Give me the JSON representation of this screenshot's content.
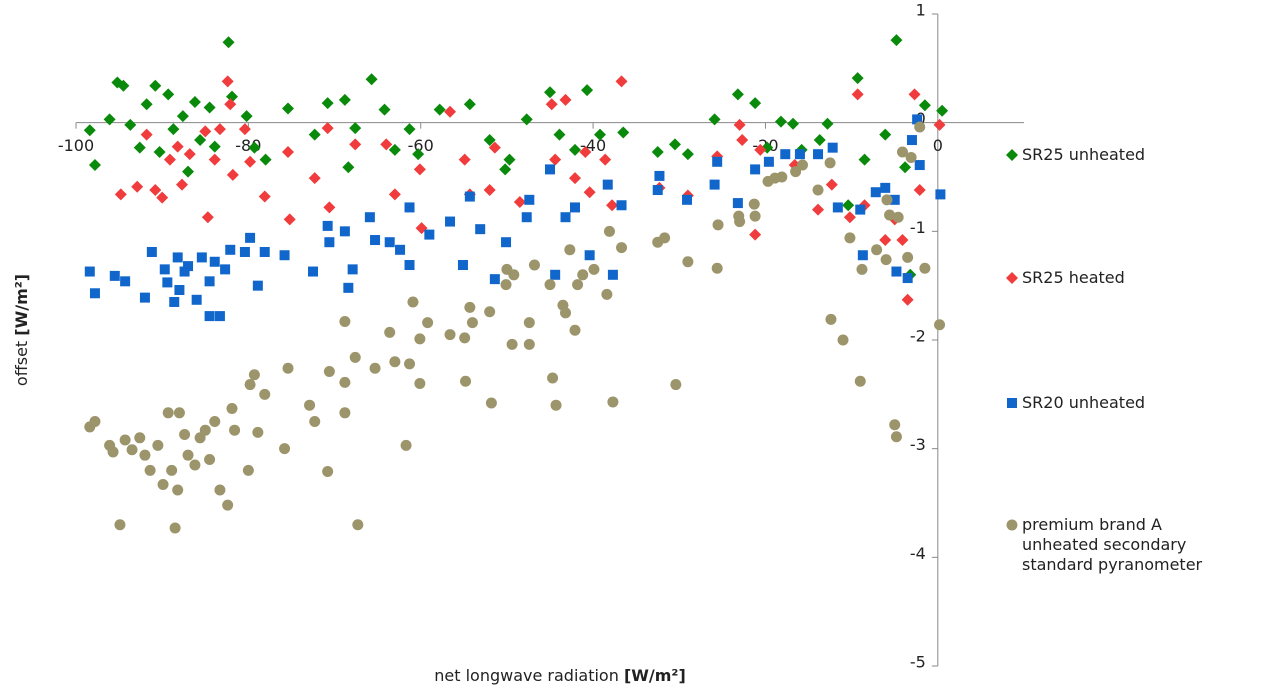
{
  "chart_data": {
    "type": "scatter",
    "xlabel": {
      "text": "net longwave radiation",
      "unit": "[W/m²]"
    },
    "ylabel": {
      "text": "offset",
      "unit": "[W/m²]"
    },
    "xlim": [
      -100,
      10
    ],
    "xticks": [
      -100,
      -80,
      -60,
      -40,
      -20,
      0
    ],
    "ylim": [
      -5,
      1
    ],
    "yticks": [
      -5,
      -4,
      -3,
      -2,
      -1,
      0,
      1
    ],
    "grid": false,
    "legend": "right",
    "series": [
      {
        "name": "SR25 unheated",
        "color": "#0a8a0a",
        "marker": "diamond",
        "x": [
          -98.4,
          -97.8,
          -96.1,
          -95.2,
          -94.5,
          -93.7,
          -92.6,
          -91.8,
          -90.8,
          -90.3,
          -89.3,
          -88.7,
          -87.6,
          -87.0,
          -86.2,
          -85.6,
          -84.5,
          -83.9,
          -82.3,
          -81.9,
          -80.2,
          -79.3,
          -78.0,
          -75.4,
          -72.3,
          -70.8,
          -68.8,
          -68.4,
          -67.6,
          -65.7,
          -64.2,
          -63.0,
          -61.3,
          -60.3,
          -57.8,
          -54.3,
          -52.0,
          -50.2,
          -49.7,
          -47.7,
          -45.0,
          -43.9,
          -42.1,
          -40.7,
          -39.2,
          -36.5,
          -32.5,
          -30.5,
          -29.0,
          -25.9,
          -23.2,
          -21.2,
          -19.8,
          -18.2,
          -16.8,
          -15.8,
          -13.7,
          -12.8,
          -10.4,
          -9.3,
          -8.5,
          -6.1,
          -4.8,
          -3.8,
          -3.2,
          -1.5,
          0.5
        ],
        "values": [
          -0.07,
          -0.39,
          0.03,
          0.37,
          0.34,
          -0.02,
          -0.23,
          0.17,
          0.34,
          -0.27,
          0.26,
          -0.06,
          0.06,
          -0.45,
          0.19,
          -0.16,
          0.14,
          -0.22,
          0.74,
          0.24,
          0.06,
          -0.23,
          -0.34,
          0.13,
          -0.11,
          0.18,
          0.21,
          -0.41,
          -0.05,
          0.4,
          0.12,
          -0.25,
          -0.06,
          -0.29,
          0.12,
          0.17,
          -0.16,
          -0.43,
          -0.34,
          0.03,
          0.28,
          -0.11,
          -0.25,
          0.3,
          -0.11,
          -0.09,
          -0.27,
          -0.2,
          -0.29,
          0.03,
          0.26,
          0.18,
          -0.23,
          0.01,
          -0.01,
          -0.25,
          -0.16,
          -0.01,
          -0.76,
          0.41,
          -0.34,
          -0.11,
          0.76,
          -0.41,
          -1.4,
          0.16,
          0.11
        ]
      },
      {
        "name": "SR25 heated",
        "color": "#f03c3c",
        "marker": "diamond",
        "x": [
          -94.8,
          -92.9,
          -91.8,
          -90.8,
          -90.0,
          -89.1,
          -88.2,
          -87.7,
          -86.8,
          -85.0,
          -84.7,
          -83.9,
          -83.3,
          -82.4,
          -82.1,
          -81.8,
          -80.4,
          -79.8,
          -78.1,
          -75.4,
          -75.2,
          -72.3,
          -70.8,
          -70.6,
          -67.6,
          -64.0,
          -63.0,
          -60.1,
          -59.9,
          -56.6,
          -54.9,
          -54.3,
          -52.0,
          -51.4,
          -48.5,
          -44.8,
          -44.4,
          -43.2,
          -42.1,
          -40.9,
          -40.4,
          -38.6,
          -37.8,
          -36.7,
          -32.3,
          -29.0,
          -25.6,
          -23.0,
          -22.7,
          -21.2,
          -20.6,
          -16.6,
          -13.9,
          -12.3,
          -10.2,
          -9.3,
          -8.5,
          -6.1,
          -5.0,
          -4.1,
          -3.5,
          -2.7,
          -2.1,
          0.2
        ],
        "values": [
          -0.66,
          -0.59,
          -0.11,
          -0.62,
          -0.69,
          -0.34,
          -0.22,
          -0.57,
          -0.29,
          -0.08,
          -0.87,
          -0.34,
          -0.06,
          0.38,
          0.17,
          -0.48,
          -0.06,
          -0.36,
          -0.68,
          -0.27,
          -0.89,
          -0.51,
          -0.05,
          -0.78,
          -0.2,
          -0.2,
          -0.66,
          -0.43,
          -0.97,
          0.1,
          -0.34,
          -0.66,
          -0.62,
          -0.23,
          -0.73,
          0.17,
          -0.34,
          0.21,
          -0.51,
          -0.27,
          -0.64,
          -0.34,
          -0.76,
          0.38,
          -0.6,
          -0.67,
          -0.31,
          -0.02,
          -0.16,
          -1.03,
          -0.25,
          -0.39,
          -0.8,
          -0.57,
          -0.87,
          0.26,
          -0.76,
          -1.08,
          -0.89,
          -1.08,
          -1.63,
          0.26,
          -0.62,
          -0.02
        ]
      },
      {
        "name": "SR20 unheated",
        "color": "#1166cc",
        "marker": "square",
        "x": [
          -98.4,
          -97.8,
          -95.5,
          -94.3,
          -92.0,
          -91.2,
          -89.7,
          -89.4,
          -88.6,
          -88.2,
          -88.0,
          -87.4,
          -87.0,
          -86.0,
          -85.4,
          -84.5,
          -83.9,
          -84.5,
          -83.3,
          -82.7,
          -82.1,
          -80.4,
          -79.8,
          -78.9,
          -78.1,
          -75.8,
          -72.5,
          -70.8,
          -70.6,
          -68.8,
          -68.4,
          -67.9,
          -65.9,
          -65.3,
          -63.6,
          -62.4,
          -61.3,
          -61.3,
          -59.0,
          -56.6,
          -55.1,
          -54.3,
          -53.1,
          -51.4,
          -50.1,
          -47.7,
          -47.4,
          -45.0,
          -44.4,
          -43.2,
          -42.1,
          -40.4,
          -38.3,
          -37.7,
          -36.7,
          -32.5,
          -32.3,
          -29.1,
          -25.9,
          -25.6,
          -23.2,
          -21.2,
          -19.6,
          -17.7,
          -16.0,
          -13.9,
          -12.2,
          -11.6,
          -9.0,
          -8.7,
          -7.2,
          -6.1,
          -5.0,
          -4.8,
          -3.5,
          -3.0,
          -2.4,
          -2.1,
          0.3
        ],
        "values": [
          -1.37,
          -1.57,
          -1.41,
          -1.46,
          -1.61,
          -1.19,
          -1.35,
          -1.47,
          -1.65,
          -1.24,
          -1.54,
          -1.37,
          -1.32,
          -1.63,
          -1.24,
          -1.46,
          -1.28,
          -1.78,
          -1.78,
          -1.35,
          -1.17,
          -1.19,
          -1.06,
          -1.5,
          -1.19,
          -1.22,
          -1.37,
          -0.95,
          -1.1,
          -1.0,
          -1.52,
          -1.35,
          -0.87,
          -1.08,
          -1.1,
          -1.17,
          -0.78,
          -1.31,
          -1.03,
          -0.91,
          -1.31,
          -0.68,
          -0.98,
          -1.44,
          -1.1,
          -0.87,
          -0.71,
          -0.43,
          -1.4,
          -0.87,
          -0.78,
          -1.22,
          -0.57,
          -1.4,
          -0.76,
          -0.62,
          -0.49,
          -0.71,
          -0.57,
          -0.36,
          -0.74,
          -0.43,
          -0.36,
          -0.29,
          -0.29,
          -0.29,
          -0.23,
          -0.78,
          -0.8,
          -1.22,
          -0.64,
          -0.6,
          -0.71,
          -1.37,
          -1.43,
          -0.16,
          0.03,
          -0.39,
          -0.66
        ]
      },
      {
        "name": "premium brand A unheated secondary standard pyranometer",
        "color": "#9c946a",
        "marker": "circle",
        "x": [
          -98.4,
          -97.8,
          -96.1,
          -95.7,
          -94.9,
          -94.3,
          -93.5,
          -92.6,
          -92.0,
          -91.4,
          -90.5,
          -89.9,
          -89.3,
          -88.9,
          -88.5,
          -88.2,
          -88.0,
          -87.4,
          -87.0,
          -86.2,
          -85.6,
          -85.0,
          -84.5,
          -83.9,
          -83.3,
          -82.4,
          -81.9,
          -81.6,
          -80.0,
          -79.8,
          -79.3,
          -78.9,
          -78.1,
          -75.8,
          -75.4,
          -72.9,
          -72.3,
          -70.8,
          -70.6,
          -68.8,
          -68.8,
          -68.8,
          -67.6,
          -67.3,
          -65.3,
          -63.6,
          -63.0,
          -61.3,
          -61.7,
          -60.9,
          -60.1,
          -60.1,
          -59.2,
          -56.6,
          -54.9,
          -54.8,
          -54.3,
          -54.0,
          -52.0,
          -51.8,
          -50.1,
          -50.0,
          -49.4,
          -49.2,
          -47.4,
          -47.4,
          -46.8,
          -45.0,
          -44.7,
          -44.3,
          -43.5,
          -43.2,
          -42.7,
          -42.1,
          -41.8,
          -41.2,
          -39.9,
          -38.4,
          -38.1,
          -37.7,
          -36.7,
          -32.5,
          -31.7,
          -30.4,
          -29.0,
          -25.6,
          -25.5,
          -23.1,
          -23.0,
          -21.3,
          -21.2,
          -19.7,
          -18.9,
          -18.1,
          -16.5,
          -15.7,
          -13.9,
          -12.5,
          -12.4,
          -11.0,
          -10.2,
          -9.0,
          -8.8,
          -7.1,
          -6.0,
          -5.9,
          -5.6,
          -5.0,
          -4.8,
          -4.6,
          -4.1,
          -3.5,
          -3.1,
          -2.1,
          -1.5,
          0.2
        ],
        "values": [
          -2.8,
          -2.75,
          -2.97,
          -3.03,
          -3.7,
          -2.92,
          -3.01,
          -2.9,
          -3.06,
          -3.2,
          -2.97,
          -3.33,
          -2.67,
          -3.2,
          -3.73,
          -3.38,
          -2.67,
          -2.87,
          -3.06,
          -3.15,
          -2.9,
          -2.83,
          -3.1,
          -2.75,
          -3.38,
          -3.52,
          -2.63,
          -2.83,
          -3.2,
          -2.41,
          -2.32,
          -2.85,
          -2.5,
          -3.0,
          -2.26,
          -2.6,
          -2.75,
          -3.21,
          -2.29,
          -2.39,
          -2.67,
          -1.83,
          -2.16,
          -3.7,
          -2.26,
          -1.93,
          -2.2,
          -2.22,
          -2.97,
          -1.65,
          -1.99,
          -2.4,
          -1.84,
          -1.95,
          -1.98,
          -2.38,
          -1.7,
          -1.84,
          -1.74,
          -2.58,
          -1.49,
          -1.35,
          -2.04,
          -1.4,
          -1.84,
          -2.04,
          -1.31,
          -1.49,
          -2.35,
          -2.6,
          -1.68,
          -1.75,
          -1.17,
          -1.91,
          -1.49,
          -1.4,
          -1.35,
          -1.58,
          -1.0,
          -2.57,
          -1.15,
          -1.1,
          -1.06,
          -2.41,
          -1.28,
          -1.34,
          -0.94,
          -0.86,
          -0.91,
          -0.75,
          -0.86,
          -0.54,
          -0.51,
          -0.5,
          -0.45,
          -0.39,
          -0.62,
          -0.37,
          -1.81,
          -2.0,
          -1.06,
          -2.38,
          -1.35,
          -1.17,
          -1.26,
          -0.71,
          -0.85,
          -2.78,
          -2.89,
          -0.87,
          -0.27,
          -1.24,
          -0.32,
          -0.04,
          -1.34,
          -1.86
        ]
      }
    ]
  }
}
